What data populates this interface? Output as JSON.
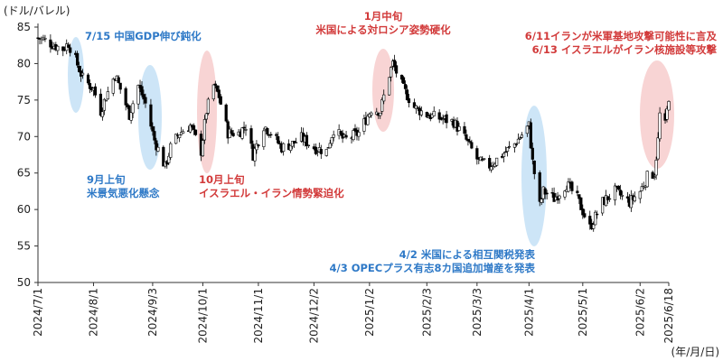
{
  "chart_data": {
    "type": "candlestick",
    "title": "",
    "ylabel": "(ドル/バレル)",
    "xlabel": "(年/月/日)",
    "ylim": [
      50,
      85
    ],
    "yticks": [
      50,
      55,
      60,
      65,
      70,
      75,
      80,
      85
    ],
    "xlim": [
      "2024-07-01",
      "2025-06-18"
    ],
    "xticks": [
      {
        "date": "2024-07-01",
        "label": "2024/7/1"
      },
      {
        "date": "2024-08-01",
        "label": "2024/8/1"
      },
      {
        "date": "2024-09-03",
        "label": "2024/9/3"
      },
      {
        "date": "2024-10-01",
        "label": "2024/10/1"
      },
      {
        "date": "2024-11-01",
        "label": "2024/11/1"
      },
      {
        "date": "2024-12-02",
        "label": "2024/12/2"
      },
      {
        "date": "2025-01-02",
        "label": "2025/1/2"
      },
      {
        "date": "2025-02-03",
        "label": "2025/2/3"
      },
      {
        "date": "2025-03-03",
        "label": "2025/3/3"
      },
      {
        "date": "2025-04-01",
        "label": "2025/4/1"
      },
      {
        "date": "2025-05-01",
        "label": "2025/5/1"
      },
      {
        "date": "2025-06-02",
        "label": "2025/6/2"
      },
      {
        "date": "2025-06-18",
        "label": "2025/6/18"
      }
    ],
    "grid": false,
    "up_color": "#ffffff",
    "down_color": "#000000",
    "closes": [
      {
        "date": "2024-07-01",
        "close": 83.5
      },
      {
        "date": "2024-07-05",
        "close": 83.2
      },
      {
        "date": "2024-07-10",
        "close": 82.5
      },
      {
        "date": "2024-07-15",
        "close": 82.0
      },
      {
        "date": "2024-07-18",
        "close": 82.8
      },
      {
        "date": "2024-07-22",
        "close": 80.5
      },
      {
        "date": "2024-07-26",
        "close": 78.0
      },
      {
        "date": "2024-08-01",
        "close": 76.5
      },
      {
        "date": "2024-08-05",
        "close": 73.5
      },
      {
        "date": "2024-08-08",
        "close": 75.5
      },
      {
        "date": "2024-08-13",
        "close": 78.5
      },
      {
        "date": "2024-08-16",
        "close": 76.5
      },
      {
        "date": "2024-08-21",
        "close": 73.0
      },
      {
        "date": "2024-08-26",
        "close": 77.0
      },
      {
        "date": "2024-08-30",
        "close": 74.5
      },
      {
        "date": "2024-09-04",
        "close": 69.5
      },
      {
        "date": "2024-09-10",
        "close": 65.8
      },
      {
        "date": "2024-09-13",
        "close": 68.5
      },
      {
        "date": "2024-09-18",
        "close": 70.5
      },
      {
        "date": "2024-09-24",
        "close": 71.5
      },
      {
        "date": "2024-09-30",
        "close": 68.0
      },
      {
        "date": "2024-10-03",
        "close": 73.5
      },
      {
        "date": "2024-10-07",
        "close": 77.0
      },
      {
        "date": "2024-10-10",
        "close": 75.5
      },
      {
        "date": "2024-10-15",
        "close": 70.5
      },
      {
        "date": "2024-10-21",
        "close": 70.5
      },
      {
        "date": "2024-10-25",
        "close": 71.5
      },
      {
        "date": "2024-10-29",
        "close": 67.5
      },
      {
        "date": "2024-11-04",
        "close": 71.5
      },
      {
        "date": "2024-11-08",
        "close": 70.5
      },
      {
        "date": "2024-11-14",
        "close": 68.5
      },
      {
        "date": "2024-11-20",
        "close": 69.0
      },
      {
        "date": "2024-11-25",
        "close": 69.8
      },
      {
        "date": "2024-12-02",
        "close": 68.5
      },
      {
        "date": "2024-12-09",
        "close": 68.0
      },
      {
        "date": "2024-12-13",
        "close": 71.0
      },
      {
        "date": "2024-12-19",
        "close": 69.5
      },
      {
        "date": "2024-12-27",
        "close": 70.5
      },
      {
        "date": "2025-01-03",
        "close": 73.8
      },
      {
        "date": "2025-01-08",
        "close": 73.5
      },
      {
        "date": "2025-01-13",
        "close": 78.5
      },
      {
        "date": "2025-01-15",
        "close": 80.0
      },
      {
        "date": "2025-01-21",
        "close": 76.5
      },
      {
        "date": "2025-01-27",
        "close": 74.0
      },
      {
        "date": "2025-02-03",
        "close": 73.0
      },
      {
        "date": "2025-02-10",
        "close": 72.5
      },
      {
        "date": "2025-02-18",
        "close": 72.0
      },
      {
        "date": "2025-02-25",
        "close": 69.5
      },
      {
        "date": "2025-03-04",
        "close": 66.5
      },
      {
        "date": "2025-03-10",
        "close": 66.0
      },
      {
        "date": "2025-03-17",
        "close": 67.5
      },
      {
        "date": "2025-03-24",
        "close": 69.0
      },
      {
        "date": "2025-04-01",
        "close": 71.5
      },
      {
        "date": "2025-04-03",
        "close": 66.5
      },
      {
        "date": "2025-04-07",
        "close": 60.5
      },
      {
        "date": "2025-04-09",
        "close": 62.5
      },
      {
        "date": "2025-04-15",
        "close": 61.5
      },
      {
        "date": "2025-04-22",
        "close": 63.5
      },
      {
        "date": "2025-04-28",
        "close": 61.5
      },
      {
        "date": "2025-05-05",
        "close": 57.5
      },
      {
        "date": "2025-05-12",
        "close": 61.0
      },
      {
        "date": "2025-05-19",
        "close": 62.5
      },
      {
        "date": "2025-05-27",
        "close": 61.0
      },
      {
        "date": "2025-06-02",
        "close": 62.5
      },
      {
        "date": "2025-06-06",
        "close": 64.5
      },
      {
        "date": "2025-06-10",
        "close": 65.0
      },
      {
        "date": "2025-06-12",
        "close": 69.5
      },
      {
        "date": "2025-06-13",
        "close": 73.0
      },
      {
        "date": "2025-06-16",
        "close": 71.5
      },
      {
        "date": "2025-06-18",
        "close": 75.5
      }
    ],
    "annotations": [
      {
        "lines": [
          "7/15 中国GDP伸び鈍化"
        ],
        "color": "blue",
        "date": "2024-07-15"
      },
      {
        "lines": [
          "9月上旬",
          "米景気悪化懸念"
        ],
        "color": "blue",
        "date": "2024-09-05"
      },
      {
        "lines": [
          "10月上旬",
          "イスラエル・イラン情勢緊迫化"
        ],
        "color": "red",
        "date": "2024-10-07"
      },
      {
        "lines": [
          "1月中旬",
          "米国による対ロシア姿勢硬化"
        ],
        "color": "red",
        "date": "2025-01-15"
      },
      {
        "lines": [
          "4/2 米国による相互関税発表",
          "4/3 OPECプラス有志8カ国追加増産を発表"
        ],
        "color": "blue",
        "date": "2025-04-02"
      },
      {
        "lines": [
          "6/11イランが米軍基地攻撃可能性に言及",
          "6/13 イスラエルがイラン核施設等攻撃"
        ],
        "color": "red",
        "date": "2025-06-13"
      }
    ],
    "colors": {
      "blue_text": "#2e79c7",
      "red_text": "#d23a3a",
      "blue_highlight": "#bcdcf4",
      "red_highlight": "#f6c6c6"
    }
  }
}
